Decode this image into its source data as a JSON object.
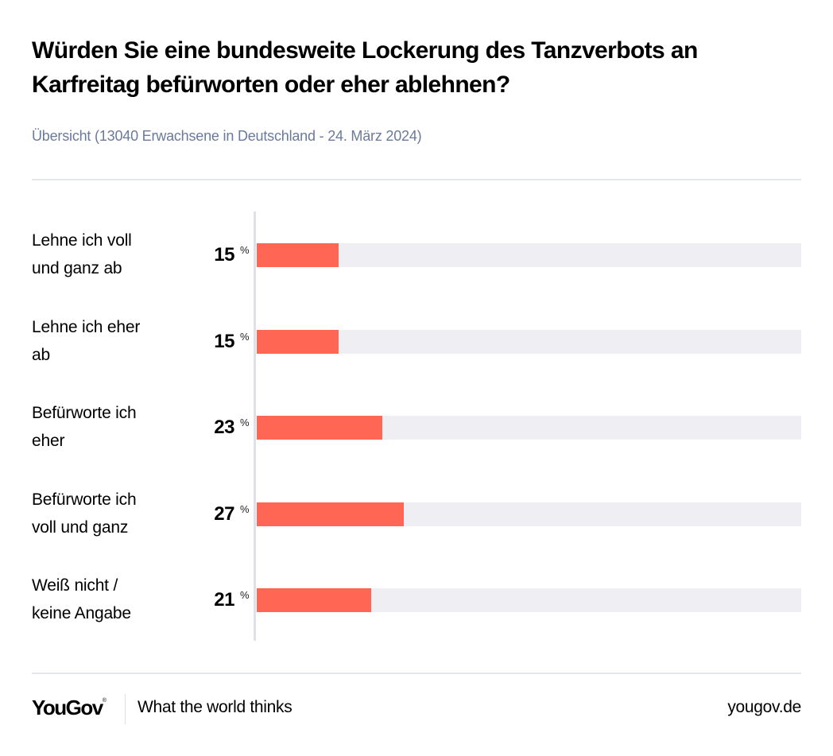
{
  "title": "Würden Sie eine bundesweite Lockerung des Tanzverbots an Karfreitag befürworten oder eher ablehnen?",
  "subtitle": "Übersicht (13040 Erwachsene in Deutschland - 24. März 2024)",
  "colors": {
    "bar": "#ff6654",
    "track": "#eeeef3",
    "subtitle": "#6b7a9a"
  },
  "chart_data": {
    "type": "bar",
    "orientation": "horizontal",
    "title": "Würden Sie eine bundesweite Lockerung des Tanzverbots an Karfreitag befürworten oder eher ablehnen?",
    "subtitle": "Übersicht (13040 Erwachsene in Deutschland - 24. März 2024)",
    "categories": [
      "Lehne ich voll und ganz ab",
      "Lehne ich eher ab",
      "Befürworte ich eher",
      "Befürworte ich voll und ganz",
      "Weiß nicht / keine Angabe"
    ],
    "values": [
      15,
      15,
      23,
      27,
      21
    ],
    "unit": "%",
    "xlim": [
      0,
      100
    ],
    "xlabel": "",
    "ylabel": "",
    "grid": false,
    "legend": "none"
  },
  "rows": [
    {
      "label_line1": "Lehne ich voll",
      "label_line2": "und ganz ab",
      "value": 15,
      "value_text": "15",
      "unit": "%"
    },
    {
      "label_line1": "Lehne ich eher",
      "label_line2": "ab",
      "value": 15,
      "value_text": "15",
      "unit": "%"
    },
    {
      "label_line1": "Befürworte ich",
      "label_line2": "eher",
      "value": 23,
      "value_text": "23",
      "unit": "%"
    },
    {
      "label_line1": "Befürworte ich",
      "label_line2": "voll und ganz",
      "value": 27,
      "value_text": "27",
      "unit": "%"
    },
    {
      "label_line1": "Weiß nicht /",
      "label_line2": "keine Angabe",
      "value": 21,
      "value_text": "21",
      "unit": "%"
    }
  ],
  "footer": {
    "logo": "YouGov",
    "logo_mark": "®",
    "tagline": "What the world thinks",
    "site": "yougov.de"
  }
}
